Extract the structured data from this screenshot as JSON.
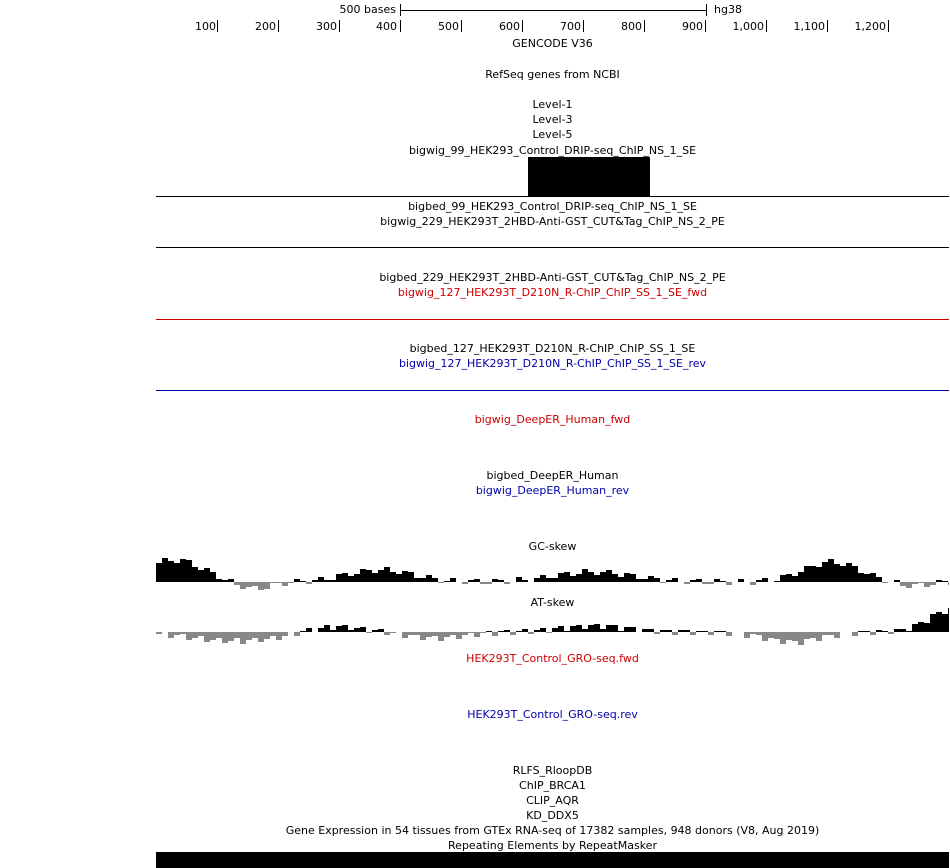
{
  "ruler": {
    "scale_label": "500 bases",
    "assembly": "hg38",
    "ticks": [
      "100",
      "200",
      "300",
      "400",
      "500",
      "600",
      "700",
      "800",
      "900",
      "1,000",
      "1,100",
      "1,200"
    ]
  },
  "tracks": [
    {
      "label": "GENCODE V36",
      "color": "#000000"
    },
    {
      "label": "RefSeq genes from NCBI",
      "color": "#000000"
    },
    {
      "label": "Level-1",
      "color": "#000000"
    },
    {
      "label": "Level-3",
      "color": "#000000"
    },
    {
      "label": "Level-5",
      "color": "#000000"
    },
    {
      "label": "bigwig_99_HEK293_Control_DRIP-seq_ChIP_NS_1_SE",
      "color": "#000000"
    },
    {
      "label": "bigbed_99_HEK293_Control_DRIP-seq_ChIP_NS_1_SE",
      "color": "#000000"
    },
    {
      "label": "bigwig_229_HEK293T_2HBD-Anti-GST_CUT&Tag_ChIP_NS_2_PE",
      "color": "#000000"
    },
    {
      "label": "bigbed_229_HEK293T_2HBD-Anti-GST_CUT&Tag_ChIP_NS_2_PE",
      "color": "#000000"
    },
    {
      "label": "bigwig_127_HEK293T_D210N_R-ChIP_ChIP_SS_1_SE_fwd",
      "color": "#cc0000"
    },
    {
      "label": "bigbed_127_HEK293T_D210N_R-ChIP_ChIP_SS_1_SE",
      "color": "#000000"
    },
    {
      "label": "bigwig_127_HEK293T_D210N_R-ChIP_ChIP_SS_1_SE_rev",
      "color": "#0000aa"
    },
    {
      "label": "bigwig_DeepER_Human_fwd",
      "color": "#cc0000"
    },
    {
      "label": "bigbed_DeepER_Human",
      "color": "#000000"
    },
    {
      "label": "bigwig_DeepER_Human_rev",
      "color": "#0000aa"
    },
    {
      "label": "GC-skew",
      "color": "#000000"
    },
    {
      "label": "AT-skew",
      "color": "#000000"
    },
    {
      "label": "HEK293T_Control_GRO-seq.fwd",
      "color": "#cc0000"
    },
    {
      "label": "HEK293T_Control_GRO-seq.rev",
      "color": "#0000aa"
    },
    {
      "label": "RLFS_RloopDB",
      "color": "#000000"
    },
    {
      "label": "ChIP_BRCA1",
      "color": "#000000"
    },
    {
      "label": "CLIP_AQR",
      "color": "#000000"
    },
    {
      "label": "KD_DDX5",
      "color": "#000000"
    },
    {
      "label": "Gene Expression in 54 tissues from GTEx RNA-seq of 17382 samples, 948 donors (V8, Aug 2019)",
      "color": "#000000"
    },
    {
      "label": "Repeating Elements by RepeatMasker",
      "color": "#000000"
    }
  ],
  "colors": {
    "plus_strand": "#cc0000",
    "minus_strand": "#0000aa",
    "positive_signal": "#000000",
    "negative_signal": "#888888"
  }
}
